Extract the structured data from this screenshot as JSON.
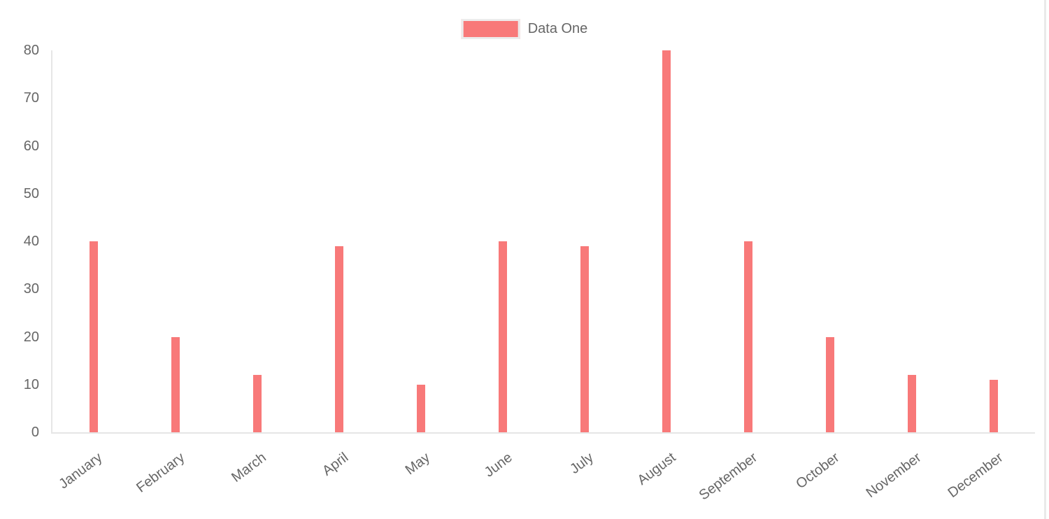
{
  "chart_data": {
    "type": "bar",
    "title": "",
    "categories": [
      "January",
      "February",
      "March",
      "April",
      "May",
      "June",
      "July",
      "August",
      "September",
      "October",
      "November",
      "December"
    ],
    "series": [
      {
        "name": "Data One",
        "color": "#f87979",
        "values": [
          40,
          20,
          12,
          39,
          10,
          40,
          39,
          80,
          40,
          20,
          12,
          11
        ]
      }
    ],
    "xlabel": "",
    "ylabel": "",
    "ylim": [
      0,
      80
    ],
    "yticks": [
      0,
      10,
      20,
      30,
      40,
      50,
      60,
      70,
      80
    ],
    "grid": false,
    "legend_position": "top-center",
    "x_tick_rotation_deg": -37,
    "axis_line_color": "#e6e6e6",
    "tick_label_color": "#666666",
    "legend_swatch_border_color": "#ececec",
    "background_color": "#ffffff"
  }
}
